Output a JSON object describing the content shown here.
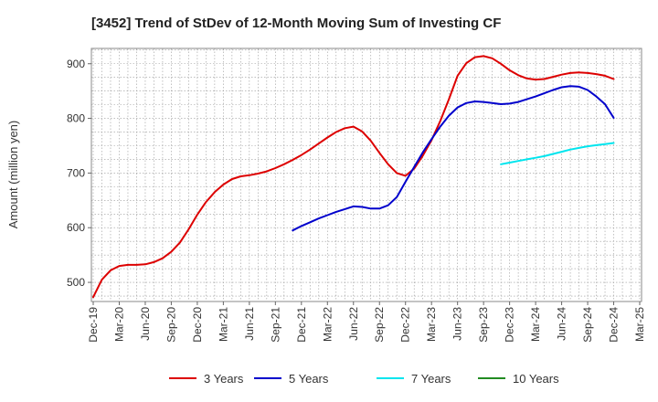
{
  "chart_data": {
    "type": "line",
    "title": "[3452]  Trend of StDev of 12-Month Moving Sum of Investing CF",
    "xlabel": "",
    "ylabel": "Amount (million yen)",
    "ylim": [
      465,
      928
    ],
    "yticks": [
      500,
      600,
      700,
      800,
      900
    ],
    "x_months": [
      "2019-12",
      "2020-01",
      "2020-02",
      "2020-03",
      "2020-04",
      "2020-05",
      "2020-06",
      "2020-07",
      "2020-08",
      "2020-09",
      "2020-10",
      "2020-11",
      "2020-12",
      "2021-01",
      "2021-02",
      "2021-03",
      "2021-04",
      "2021-05",
      "2021-06",
      "2021-07",
      "2021-08",
      "2021-09",
      "2021-10",
      "2021-11",
      "2021-12",
      "2022-01",
      "2022-02",
      "2022-03",
      "2022-04",
      "2022-05",
      "2022-06",
      "2022-07",
      "2022-08",
      "2022-09",
      "2022-10",
      "2022-11",
      "2022-12",
      "2023-01",
      "2023-02",
      "2023-03",
      "2023-04",
      "2023-05",
      "2023-06",
      "2023-07",
      "2023-08",
      "2023-09",
      "2023-10",
      "2023-11",
      "2023-12",
      "2024-01",
      "2024-02",
      "2024-03",
      "2024-04",
      "2024-05",
      "2024-06",
      "2024-07",
      "2024-08",
      "2024-09",
      "2024-10",
      "2024-11",
      "2024-12",
      "2025-01",
      "2025-02",
      "2025-03"
    ],
    "xtick_labels": [
      "Dec-19",
      "Mar-20",
      "Jun-20",
      "Sep-20",
      "Dec-20",
      "Mar-21",
      "Jun-21",
      "Sep-21",
      "Dec-21",
      "Mar-22",
      "Jun-22",
      "Sep-22",
      "Dec-22",
      "Mar-23",
      "Jun-23",
      "Sep-23",
      "Dec-23",
      "Mar-24",
      "Jun-24",
      "Sep-24",
      "Dec-24",
      "Mar-25"
    ],
    "grid": true,
    "legend_position": "bottom",
    "series": [
      {
        "name": "3 Years",
        "color": "#dd0000",
        "start": "2019-12",
        "values": [
          473,
          505,
          522,
          530,
          532,
          532,
          533,
          537,
          544,
          556,
          573,
          597,
          624,
          647,
          665,
          679,
          689,
          694,
          696,
          699,
          703,
          709,
          716,
          724,
          733,
          743,
          754,
          765,
          775,
          782,
          785,
          776,
          759,
          737,
          716,
          700,
          695,
          708,
          732,
          760,
          795,
          835,
          878,
          901,
          912,
          914,
          910,
          900,
          888,
          879,
          873,
          871,
          872,
          876,
          880,
          883,
          884,
          883,
          881,
          878,
          872
        ]
      },
      {
        "name": "5 Years",
        "color": "#0000cc",
        "start": "2021-11",
        "values": [
          595,
          603,
          610,
          617,
          623,
          629,
          634,
          639,
          638,
          635,
          635,
          641,
          656,
          684,
          711,
          738,
          762,
          785,
          805,
          820,
          828,
          831,
          830,
          828,
          826,
          827,
          830,
          835,
          840,
          846,
          852,
          857,
          859,
          858,
          852,
          840,
          826,
          801
        ]
      },
      {
        "name": "7 Years",
        "color": "#00e5ee",
        "start": "2023-11",
        "values": [
          716,
          719,
          722,
          725,
          728,
          731,
          735,
          739,
          743,
          746,
          749,
          751,
          753,
          755
        ]
      },
      {
        "name": "10 Years",
        "color": "#228b22",
        "start": "2025-03",
        "values": []
      }
    ]
  }
}
